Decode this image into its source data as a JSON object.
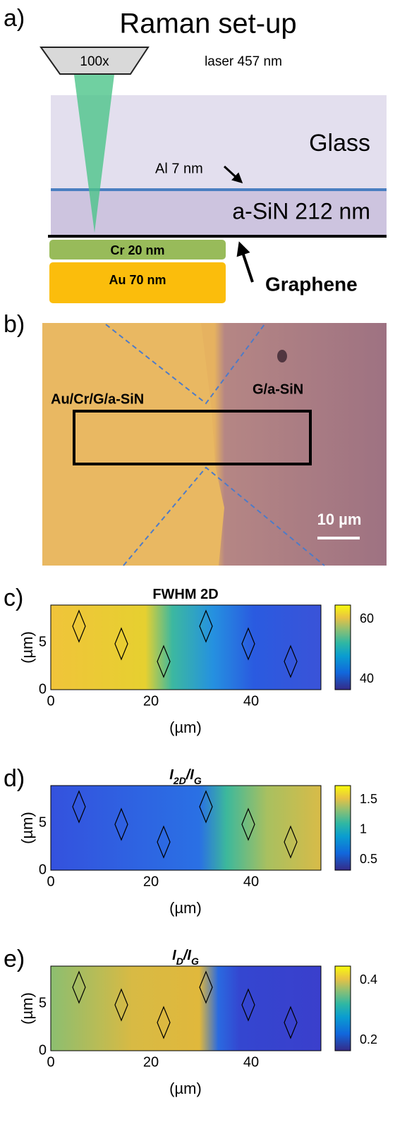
{
  "panel_a": {
    "label": "a)",
    "title": "Raman set-up",
    "objective": "100x",
    "laser": "laser 457 nm",
    "glass": "Glass",
    "al": "Al 7 nm",
    "sin": "a-SiN 212 nm",
    "cr": "Cr 20 nm",
    "au": "Au 70 nm",
    "graphene": "Graphene"
  },
  "panel_b": {
    "label": "b)",
    "left_region": "Au/Cr/G/a-SiN",
    "right_region": "G/a-SiN",
    "scale_bar": "10 µm"
  },
  "maps": [
    {
      "label": "c)",
      "title": [
        {
          "text": "FWHM 2D",
          "sub": false
        }
      ],
      "x_label": "(µm)",
      "y_label": "(µm)",
      "xticks": [
        "0",
        "20",
        "40"
      ],
      "yticks": [
        "0",
        "5"
      ],
      "colorbar_ticks": [
        "60",
        "40"
      ]
    },
    {
      "label": "d)",
      "title": [
        {
          "text": "I",
          "sub": false
        },
        {
          "text": "2D",
          "sub": true
        },
        {
          "text": "/I",
          "sub": false
        },
        {
          "text": "G",
          "sub": true
        }
      ],
      "x_label": "(µm)",
      "y_label": "(µm)",
      "xticks": [
        "0",
        "20",
        "40"
      ],
      "yticks": [
        "0",
        "5"
      ],
      "colorbar_ticks": [
        "1.5",
        "1",
        "0.5"
      ]
    },
    {
      "label": "e)",
      "title": [
        {
          "text": "I",
          "sub": false
        },
        {
          "text": "D",
          "sub": true
        },
        {
          "text": "/I",
          "sub": false
        },
        {
          "text": "G",
          "sub": true
        }
      ],
      "x_label": "(µm)",
      "y_label": "(µm)",
      "xticks": [
        "0",
        "20",
        "40"
      ],
      "yticks": [
        "0",
        "5"
      ],
      "colorbar_ticks": [
        "0.4",
        "0.2"
      ]
    }
  ]
}
